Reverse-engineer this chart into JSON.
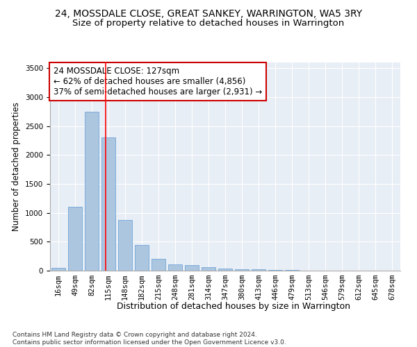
{
  "title": "24, MOSSDALE CLOSE, GREAT SANKEY, WARRINGTON, WA5 3RY",
  "subtitle": "Size of property relative to detached houses in Warrington",
  "xlabel": "Distribution of detached houses by size in Warrington",
  "ylabel": "Number of detached properties",
  "categories": [
    "16sqm",
    "49sqm",
    "82sqm",
    "115sqm",
    "148sqm",
    "182sqm",
    "215sqm",
    "248sqm",
    "281sqm",
    "314sqm",
    "347sqm",
    "380sqm",
    "413sqm",
    "446sqm",
    "479sqm",
    "513sqm",
    "546sqm",
    "579sqm",
    "612sqm",
    "645sqm",
    "678sqm"
  ],
  "values": [
    50,
    1100,
    2750,
    2300,
    880,
    440,
    200,
    105,
    100,
    55,
    40,
    30,
    20,
    10,
    7,
    5,
    4,
    3,
    2,
    2,
    2
  ],
  "bar_color": "#adc6e0",
  "bar_edgecolor": "#5b9bd5",
  "red_line_x": 2.82,
  "annotation_line1": "24 MOSSDALE CLOSE: 127sqm",
  "annotation_line2": "← 62% of detached houses are smaller (4,856)",
  "annotation_line3": "37% of semi-detached houses are larger (2,931) →",
  "annotation_box_color": "#ffffff",
  "annotation_box_edgecolor": "#cc0000",
  "ylim": [
    0,
    3600
  ],
  "yticks": [
    0,
    500,
    1000,
    1500,
    2000,
    2500,
    3000,
    3500
  ],
  "bg_color": "#e8eef5",
  "footer": "Contains HM Land Registry data © Crown copyright and database right 2024.\nContains public sector information licensed under the Open Government Licence v3.0.",
  "title_fontsize": 10,
  "subtitle_fontsize": 9.5,
  "xlabel_fontsize": 9,
  "ylabel_fontsize": 8.5,
  "tick_fontsize": 7.5,
  "annotation_fontsize": 8.5,
  "footer_fontsize": 6.5
}
